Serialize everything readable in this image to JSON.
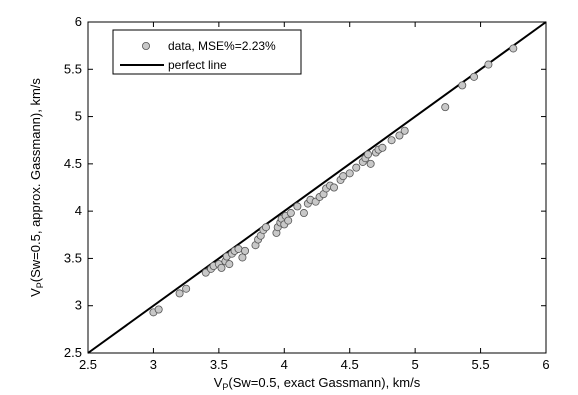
{
  "chart_data": {
    "type": "scatter",
    "title": "",
    "xlabel": {
      "main": "V",
      "sub": "P",
      "rest": "(Sw=0.5, exact Gassmann), km/s"
    },
    "ylabel": {
      "main": "V",
      "sub": "P",
      "rest": "(Sw=0.5, approx. Gassmann), km/s"
    },
    "xlim": [
      2.5,
      6
    ],
    "ylim": [
      2.5,
      6
    ],
    "xticks": [
      "2.5",
      "3",
      "3.5",
      "4",
      "4.5",
      "5",
      "5.5",
      "6"
    ],
    "yticks": [
      "2.5",
      "3",
      "3.5",
      "4",
      "4.5",
      "5",
      "5.5",
      "6"
    ],
    "grid": false,
    "legend_position": "top-left",
    "colors": {
      "marker_fill": "#c8c8c8",
      "marker_edge": "#555555",
      "line": "#000000"
    },
    "series": [
      {
        "name": "data, MSE%=2.23%",
        "kind": "scatter",
        "points": [
          [
            3.0,
            2.93
          ],
          [
            3.04,
            2.96
          ],
          [
            3.2,
            3.13
          ],
          [
            3.25,
            3.18
          ],
          [
            3.4,
            3.35
          ],
          [
            3.44,
            3.39
          ],
          [
            3.46,
            3.42
          ],
          [
            3.5,
            3.44
          ],
          [
            3.52,
            3.4
          ],
          [
            3.55,
            3.47
          ],
          [
            3.56,
            3.52
          ],
          [
            3.58,
            3.44
          ],
          [
            3.6,
            3.55
          ],
          [
            3.62,
            3.58
          ],
          [
            3.65,
            3.6
          ],
          [
            3.68,
            3.51
          ],
          [
            3.7,
            3.58
          ],
          [
            3.78,
            3.64
          ],
          [
            3.8,
            3.7
          ],
          [
            3.82,
            3.74
          ],
          [
            3.84,
            3.8
          ],
          [
            3.86,
            3.83
          ],
          [
            3.94,
            3.77
          ],
          [
            3.95,
            3.83
          ],
          [
            3.97,
            3.88
          ],
          [
            3.98,
            3.92
          ],
          [
            4.0,
            3.86
          ],
          [
            4.01,
            3.95
          ],
          [
            4.03,
            3.9
          ],
          [
            4.05,
            3.98
          ],
          [
            4.1,
            4.05
          ],
          [
            4.15,
            3.98
          ],
          [
            4.18,
            4.08
          ],
          [
            4.2,
            4.12
          ],
          [
            4.24,
            4.1
          ],
          [
            4.27,
            4.15
          ],
          [
            4.3,
            4.18
          ],
          [
            4.32,
            4.24
          ],
          [
            4.35,
            4.27
          ],
          [
            4.38,
            4.25
          ],
          [
            4.43,
            4.33
          ],
          [
            4.45,
            4.37
          ],
          [
            4.5,
            4.4
          ],
          [
            4.55,
            4.46
          ],
          [
            4.6,
            4.52
          ],
          [
            4.62,
            4.56
          ],
          [
            4.64,
            4.6
          ],
          [
            4.66,
            4.5
          ],
          [
            4.7,
            4.62
          ],
          [
            4.72,
            4.65
          ],
          [
            4.75,
            4.67
          ],
          [
            4.82,
            4.75
          ],
          [
            4.88,
            4.8
          ],
          [
            4.92,
            4.85
          ],
          [
            5.23,
            5.1
          ],
          [
            5.36,
            5.33
          ],
          [
            5.45,
            5.42
          ],
          [
            5.56,
            5.55
          ],
          [
            5.75,
            5.72
          ]
        ]
      },
      {
        "name": "perfect line",
        "kind": "line",
        "points": [
          [
            2.5,
            2.5
          ],
          [
            6,
            6
          ]
        ]
      }
    ]
  }
}
